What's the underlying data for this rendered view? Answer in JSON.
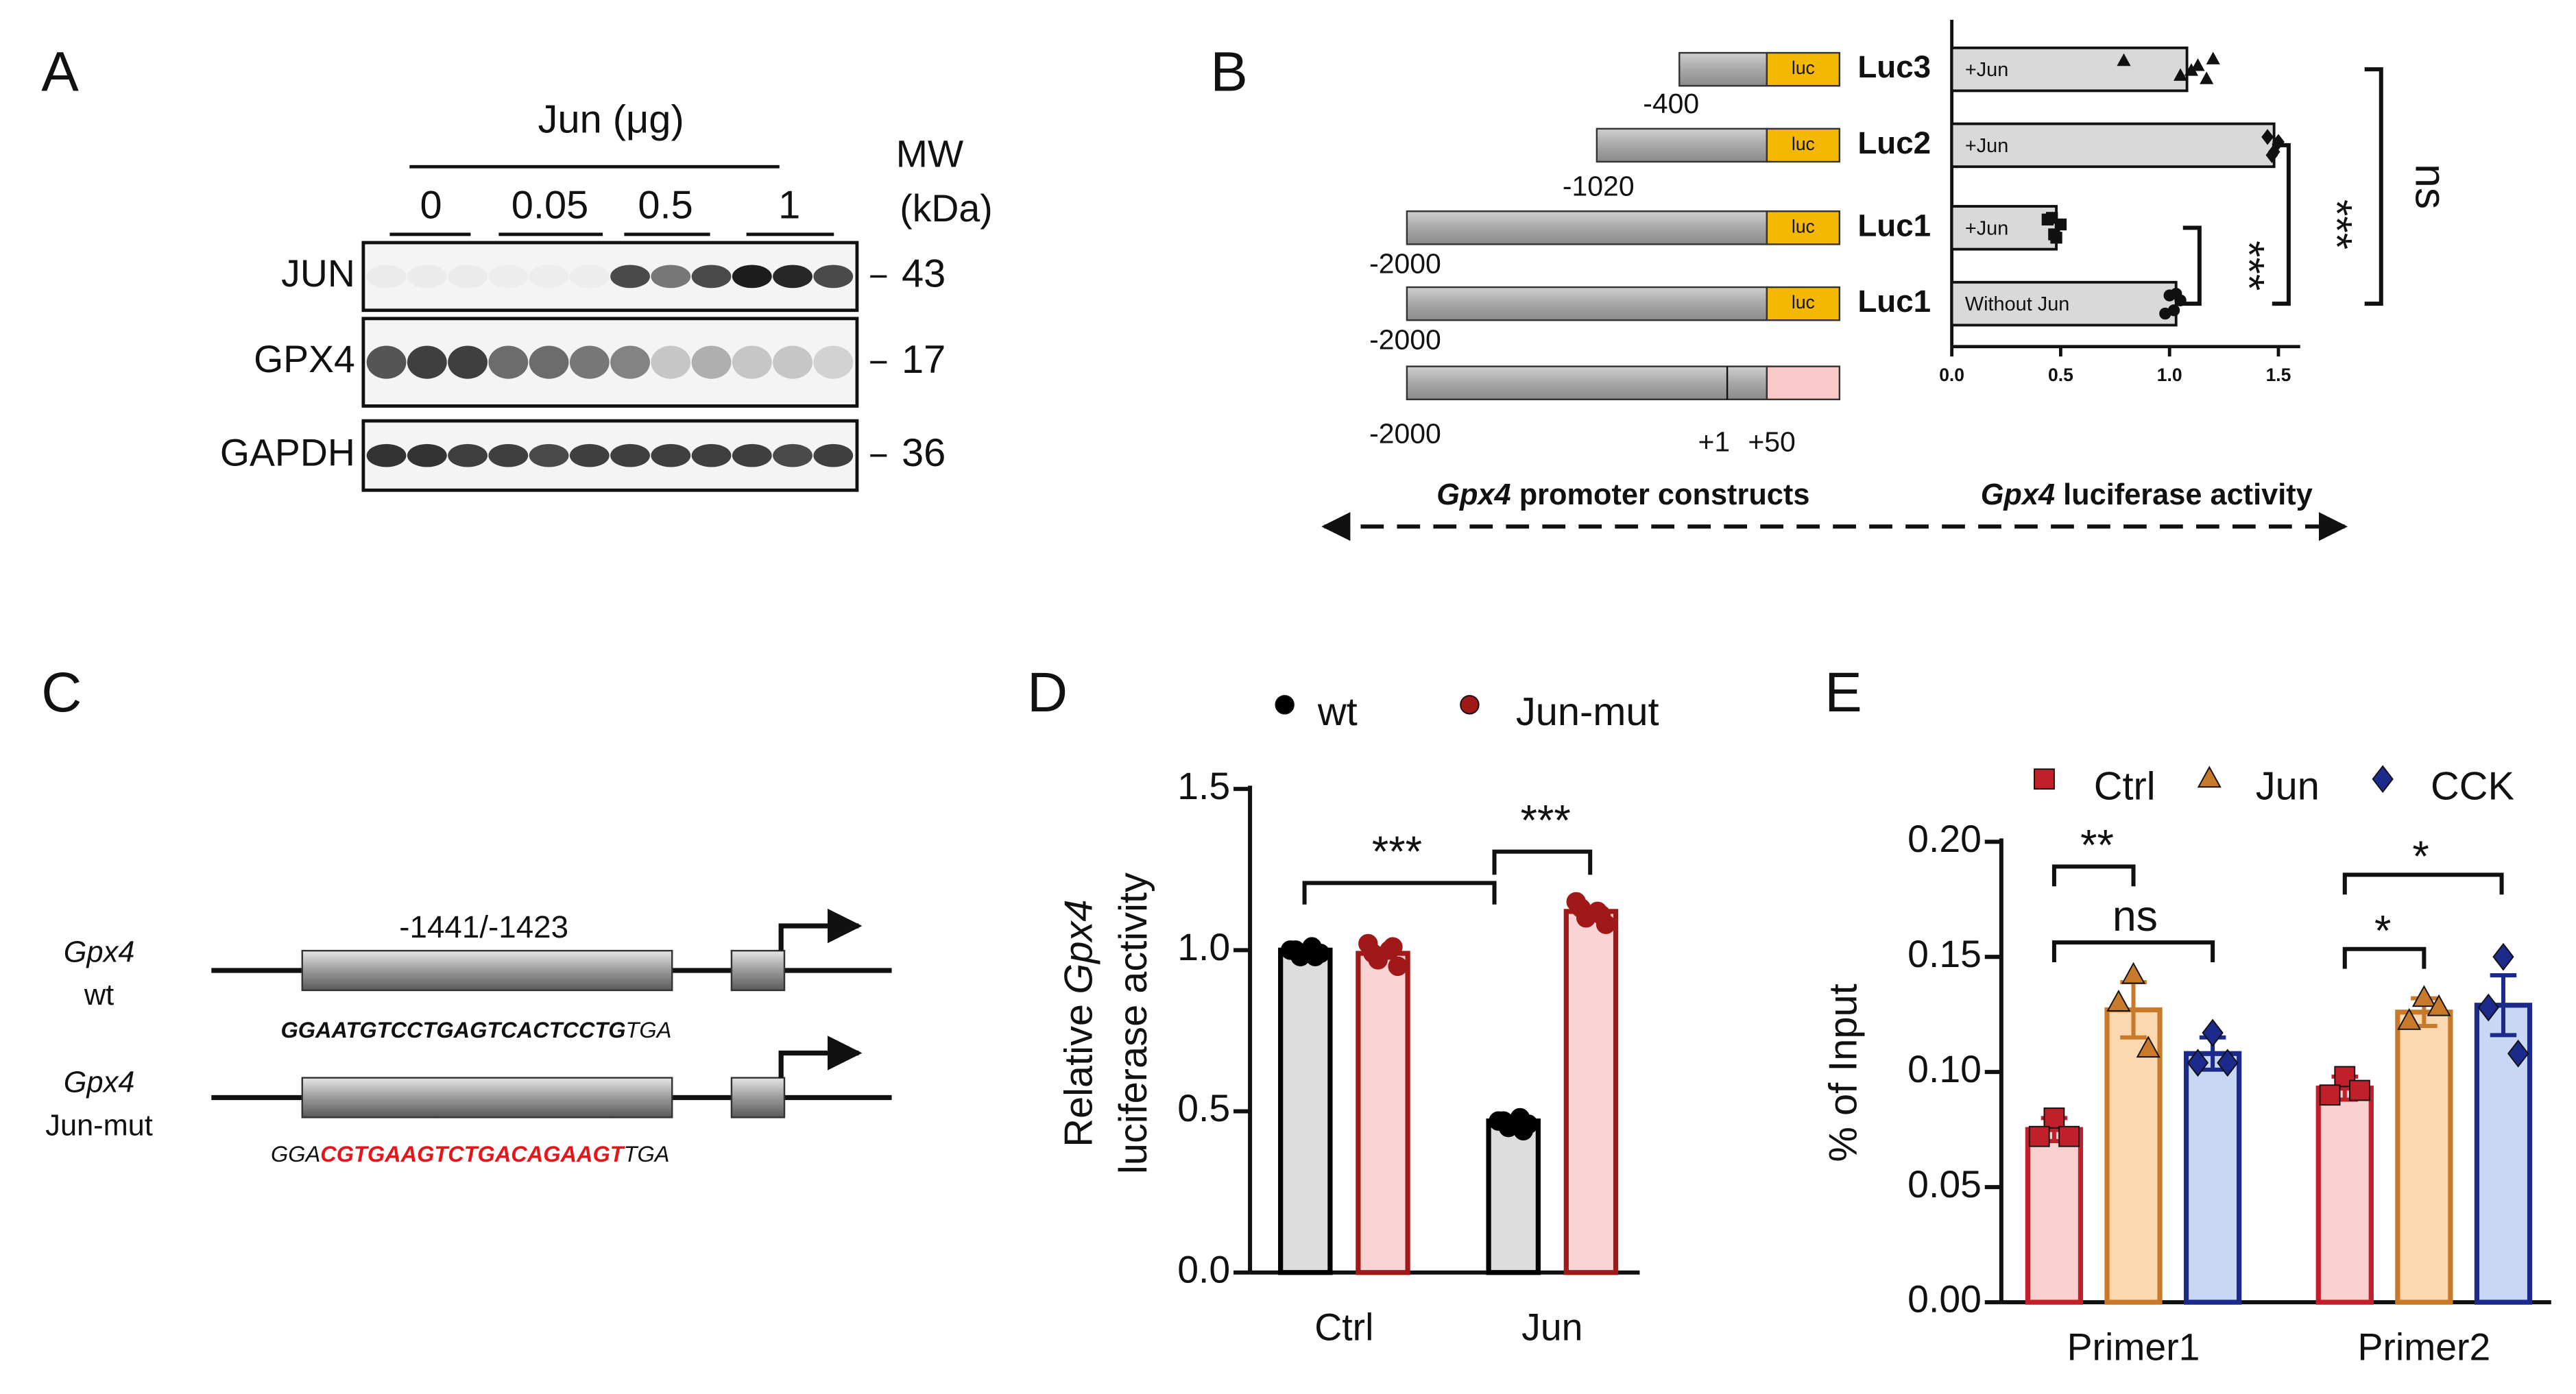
{
  "panels": {
    "A": {
      "label": "A",
      "treatment": "Jun (μg)",
      "doses": [
        "0",
        "0.05",
        "0.5",
        "1"
      ],
      "mw_header": [
        "MW",
        "(kDa)"
      ],
      "rows": [
        {
          "protein": "JUN",
          "mw": "43"
        },
        {
          "protein": "GPX4",
          "mw": "17"
        },
        {
          "protein": "GAPDH",
          "mw": "36"
        }
      ]
    },
    "B": {
      "label": "B",
      "constructs": [
        {
          "start": "-400",
          "tag": "luc"
        },
        {
          "start": "-1020",
          "tag": "luc"
        },
        {
          "start": "-2000",
          "tag": "luc"
        },
        {
          "start": "-2000",
          "tag": "luc"
        }
      ],
      "promoter": {
        "start": "-2000",
        "tss": "+1",
        "end": "+50"
      },
      "footer": {
        "left": {
          "gene": "Gpx4",
          "text": "promoter constructs"
        },
        "right": {
          "gene": "Gpx4",
          "text": "luciferase activity"
        }
      }
    },
    "C": {
      "label": "C",
      "gene_region": "-1441/-1423",
      "constructs": [
        {
          "gene": "Gpx4",
          "name": "wt",
          "sequence": [
            {
              "text": "GGAATGTCCTGAGTCACTCCTG",
              "style": "bold"
            },
            {
              "text": "TGA",
              "style": "plain"
            }
          ]
        },
        {
          "gene": "Gpx4",
          "name": "Jun-mut",
          "sequence": [
            {
              "text": "GGA",
              "style": "plain"
            },
            {
              "text": "CGTGAAGTCTGACAGAAGT",
              "style": "mutated"
            },
            {
              "text": "TGA",
              "style": "plain"
            }
          ],
          "mutation_color": "#e8141c"
        }
      ]
    }
  },
  "chart_data": [
    {
      "type": "hbar",
      "categories": [
        "Luc3",
        "Luc2",
        "Luc1",
        "Luc1"
      ],
      "bar_labels": [
        "+Jun",
        "+Jun",
        "+Jun",
        "Without Jun"
      ],
      "values": [
        1.08,
        1.48,
        0.48,
        1.03
      ],
      "points": [
        [
          0.79,
          1.05,
          1.13,
          1.17,
          1.2,
          1.1
        ],
        [
          1.45,
          1.48,
          1.5,
          1.47
        ],
        [
          0.44,
          0.47,
          0.5,
          0.48,
          0.46
        ],
        [
          1.0,
          1.02,
          1.05,
          0.98,
          1.03
        ]
      ],
      "markers": [
        "triangle",
        "diamond",
        "square",
        "circle"
      ],
      "color": "#d9d9d9",
      "xlim": [
        0,
        1.6
      ],
      "xticks": [
        {
          "value": 0,
          "label": "0.0"
        },
        {
          "value": 0.5,
          "label": "0.5"
        },
        {
          "value": 1,
          "label": "1.0"
        },
        {
          "value": 1.5,
          "label": "1.5"
        }
      ],
      "annotations": [
        "***",
        "***",
        "ns"
      ]
    },
    {
      "type": "grouped_bar",
      "panel_label": "D",
      "categories": [
        "Ctrl",
        "Jun"
      ],
      "series": [
        {
          "name": "wt",
          "color": "#000000",
          "fill": "#dcdcdc",
          "marker": "circle",
          "marker_fill": "#000000",
          "values": [
            1.0,
            0.47
          ],
          "points": [
            [
              1.0,
              0.98,
              1.01,
              0.99,
              1.0,
              0.98
            ],
            [
              0.47,
              0.45,
              0.48,
              0.46,
              0.47,
              0.44
            ]
          ]
        },
        {
          "name": "Jun-mut",
          "color": "#a01818",
          "fill": "#fad4d4",
          "marker": "circle",
          "marker_fill": "#a01818",
          "values": [
            0.99,
            1.12
          ],
          "points": [
            [
              1.02,
              0.97,
              1.0,
              0.95,
              0.99,
              1.01
            ],
            [
              1.15,
              1.1,
              1.12,
              1.08,
              1.13,
              1.11
            ]
          ]
        }
      ],
      "ylim": [
        0,
        1.5
      ],
      "yticks": [
        {
          "value": 0,
          "label": "0.0"
        },
        {
          "value": 0.5,
          "label": "0.5"
        },
        {
          "value": 1,
          "label": "1.0"
        },
        {
          "value": 1.5,
          "label": "1.5"
        }
      ],
      "ylabel": {
        "prefix": "Relative",
        "gene": "Gpx4",
        "line2": "luciferase activity"
      },
      "annotations": [
        "***",
        "***"
      ]
    },
    {
      "type": "grouped_bar",
      "panel_label": "E",
      "categories": [
        "Primer1",
        "Primer2"
      ],
      "series": [
        {
          "name": "Ctrl",
          "color": "#c0202a",
          "fill": "#f8d0d0",
          "marker": "square",
          "marker_fill": "#c0202a",
          "values": [
            0.075,
            0.093
          ],
          "errors": [
            0.005,
            0.005
          ],
          "points": [
            [
              0.08,
              0.072,
              0.072
            ],
            [
              0.098,
              0.09,
              0.092
            ]
          ]
        },
        {
          "name": "Jun",
          "color": "#c87a2a",
          "fill": "#fbd8b0",
          "marker": "triangle",
          "marker_fill": "#c87a2a",
          "values": [
            0.127,
            0.126
          ],
          "errors": [
            0.012,
            0.006
          ],
          "points": [
            [
              0.142,
              0.13,
              0.11
            ],
            [
              0.132,
              0.122,
              0.128
            ]
          ]
        },
        {
          "name": "CCK",
          "color": "#1c2a8c",
          "fill": "#c8d8f4",
          "marker": "diamond",
          "marker_fill": "#1c2a8c",
          "values": [
            0.108,
            0.129
          ],
          "errors": [
            0.007,
            0.013
          ],
          "points": [
            [
              0.117,
              0.104,
              0.104
            ],
            [
              0.15,
              0.128,
              0.108
            ]
          ]
        }
      ],
      "ylim": [
        0,
        0.2
      ],
      "yticks": [
        {
          "value": 0,
          "label": "0.00"
        },
        {
          "value": 0.05,
          "label": "0.05"
        },
        {
          "value": 0.1,
          "label": "0.10"
        },
        {
          "value": 0.15,
          "label": "0.15"
        },
        {
          "value": 0.2,
          "label": "0.20"
        }
      ],
      "ylabel": "% of Input",
      "annotations": [
        "**",
        "ns",
        "*",
        "*"
      ]
    }
  ]
}
